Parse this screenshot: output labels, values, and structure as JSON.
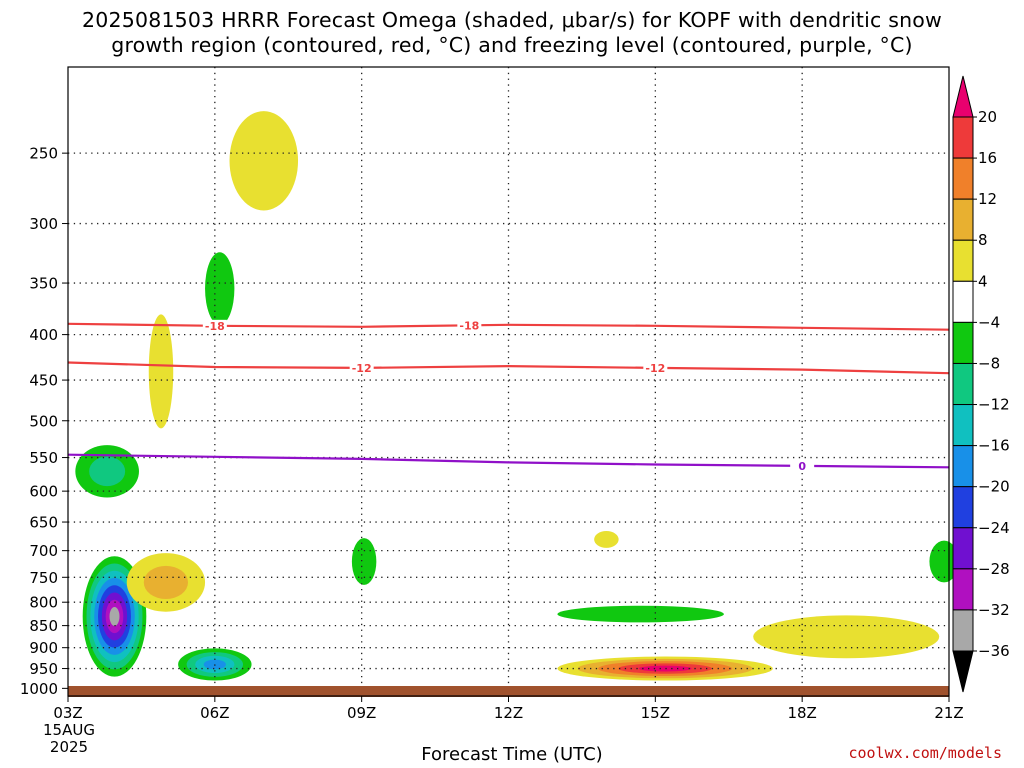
{
  "header": {
    "title_line1": "2025081503 HRRR Forecast Omega (shaded, μbar/s) for KOPF with dendritic snow",
    "title_line2": "growth region (contoured, red, °C) and freezing level (contoured, purple, °C)"
  },
  "footer": {
    "xlabel": "Forecast Time (UTC)",
    "credit": "coolwx.com/models"
  },
  "chart_data": {
    "type": "heatmap",
    "x_ticks": [
      "03Z",
      "06Z",
      "09Z",
      "12Z",
      "15Z",
      "18Z",
      "21Z"
    ],
    "x_tick_hours": [
      3,
      6,
      9,
      12,
      15,
      18,
      21
    ],
    "x_date_label": [
      "15AUG",
      "2025"
    ],
    "xlim_hours": [
      3,
      21
    ],
    "y_ticks": [
      250,
      300,
      350,
      400,
      450,
      500,
      550,
      600,
      650,
      700,
      750,
      800,
      850,
      900,
      950,
      1000
    ],
    "ylim_hpa": [
      200,
      1020
    ],
    "y_scale": "log",
    "grid": true,
    "colorbar": {
      "labels": [
        "20",
        "16",
        "12",
        "8",
        "4",
        "−4",
        "−8",
        "−12",
        "−16",
        "−20",
        "−24",
        "−28",
        "−32",
        "−36"
      ],
      "colors": [
        "#e8006e",
        "#ee3a3a",
        "#f0802a",
        "#e8b030",
        "#e8e030",
        "#ffffff",
        "#10c810",
        "#10c880",
        "#10c0c0",
        "#1890e8",
        "#2040e0",
        "#7010d0",
        "#b010c0",
        "#a8a8a8",
        "#000000"
      ]
    },
    "contours": [
      {
        "name": "dendritic snow growth -18",
        "color": "#ee4040",
        "value": "-18",
        "points": [
          [
            3,
            389
          ],
          [
            6,
            391
          ],
          [
            9,
            392
          ],
          [
            12,
            390
          ],
          [
            15,
            391
          ],
          [
            18,
            393
          ],
          [
            21,
            395
          ]
        ],
        "labels": [
          {
            "text": "-18",
            "hour": 6.0
          },
          {
            "text": "-18",
            "hour": 11.2
          }
        ]
      },
      {
        "name": "dendritic snow growth -12",
        "color": "#ee4040",
        "value": "-12",
        "points": [
          [
            3,
            430
          ],
          [
            6,
            435
          ],
          [
            9,
            436
          ],
          [
            12,
            434
          ],
          [
            15,
            436
          ],
          [
            18,
            438
          ],
          [
            21,
            442
          ]
        ],
        "labels": [
          {
            "text": "-12",
            "hour": 9.0
          },
          {
            "text": "-12",
            "hour": 15.0
          }
        ]
      },
      {
        "name": "freezing level",
        "color": "#9010c8",
        "value": "0",
        "points": [
          [
            3,
            546
          ],
          [
            6,
            549
          ],
          [
            9,
            552
          ],
          [
            12,
            557
          ],
          [
            15,
            560
          ],
          [
            18,
            562
          ],
          [
            21,
            564
          ]
        ],
        "labels": [
          {
            "text": "0",
            "hour": 18.0
          }
        ]
      }
    ],
    "omega_blobs": [
      {
        "hour": 3.95,
        "hpa": 830,
        "w": 0.65,
        "hh": 140,
        "levels": [
          "#10c810",
          "#10c880",
          "#10c0c0",
          "#1890e8",
          "#2040e0",
          "#7010d0",
          "#b010c0",
          "#a8a8a8"
        ]
      },
      {
        "hour": 5.0,
        "hpa": 760,
        "w": 0.8,
        "hh": 60,
        "levels": [
          "#e8e030",
          "#e8b030"
        ]
      },
      {
        "hour": 6.0,
        "hpa": 940,
        "w": 0.75,
        "hh": 40,
        "levels": [
          "#10c810",
          "#10c880",
          "#10c0c0",
          "#1890e8"
        ]
      },
      {
        "hour": 3.8,
        "hpa": 570,
        "w": 0.65,
        "hh": 40,
        "levels": [
          "#10c810",
          "#10c880"
        ]
      },
      {
        "hour": 4.9,
        "hpa": 440,
        "w": 0.25,
        "hh": 70,
        "levels": [
          "#e8e030"
        ]
      },
      {
        "hour": 6.1,
        "hpa": 355,
        "w": 0.3,
        "hh": 35,
        "levels": [
          "#10c810"
        ]
      },
      {
        "hour": 7.0,
        "hpa": 255,
        "w": 0.7,
        "hh": 35,
        "levels": [
          "#e8e030"
        ]
      },
      {
        "hour": 9.05,
        "hpa": 720,
        "w": 0.25,
        "hh": 45,
        "levels": [
          "#10c810"
        ]
      },
      {
        "hour": 14.0,
        "hpa": 680,
        "w": 0.25,
        "hh": 15,
        "levels": [
          "#e8e030"
        ]
      },
      {
        "hour": 15.2,
        "hpa": 950,
        "w": 2.2,
        "hh": 30,
        "levels": [
          "#e8e030",
          "#e8b030",
          "#f0802a",
          "#ee3a3a",
          "#e8006e"
        ]
      },
      {
        "hour": 18.9,
        "hpa": 875,
        "w": 1.9,
        "hh": 50,
        "levels": [
          "#e8e030"
        ]
      },
      {
        "hour": 14.7,
        "hpa": 825,
        "w": 1.7,
        "hh": 18,
        "levels": [
          "#10c810"
        ]
      },
      {
        "hour": 20.9,
        "hpa": 720,
        "w": 0.3,
        "hh": 40,
        "levels": [
          "#10c810"
        ]
      }
    ],
    "terrain_color": "#a0522d"
  }
}
